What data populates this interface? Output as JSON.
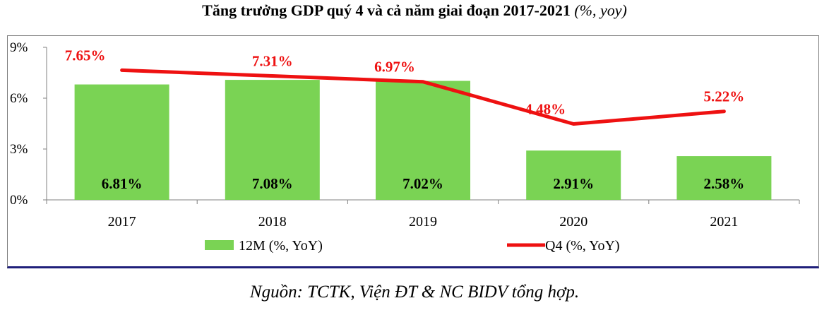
{
  "title": "Tăng trưởng GDP quý 4 và cả năm giai đoạn 2017-2021",
  "title_unit": "(%, yoy)",
  "source": "Nguồn: TCTK, Viện ĐT & NC BIDV tổng hợp.",
  "chart_data": {
    "type": "bar",
    "categories": [
      "2017",
      "2018",
      "2019",
      "2020",
      "2021"
    ],
    "series": [
      {
        "name": "12M (%, YoY)",
        "kind": "bar",
        "color": "#7ad354",
        "values": [
          6.81,
          7.08,
          7.02,
          2.91,
          2.58
        ],
        "labels": [
          "6.81%",
          "7.08%",
          "7.02%",
          "2.91%",
          "2.58%"
        ]
      },
      {
        "name": "Q4 (%, YoY)",
        "kind": "line",
        "color": "#ee1111",
        "values": [
          7.65,
          7.31,
          6.97,
          4.48,
          5.22
        ],
        "labels": [
          "7.65%",
          "7.31%",
          "6.97%",
          "4.48%",
          "5.22%"
        ]
      }
    ],
    "ylim": [
      0,
      9
    ],
    "yticks": [
      0,
      3,
      6,
      9
    ],
    "ytick_labels": [
      "0%",
      "3%",
      "6%",
      "9%"
    ],
    "legend": "bottom-center",
    "grid": false
  }
}
